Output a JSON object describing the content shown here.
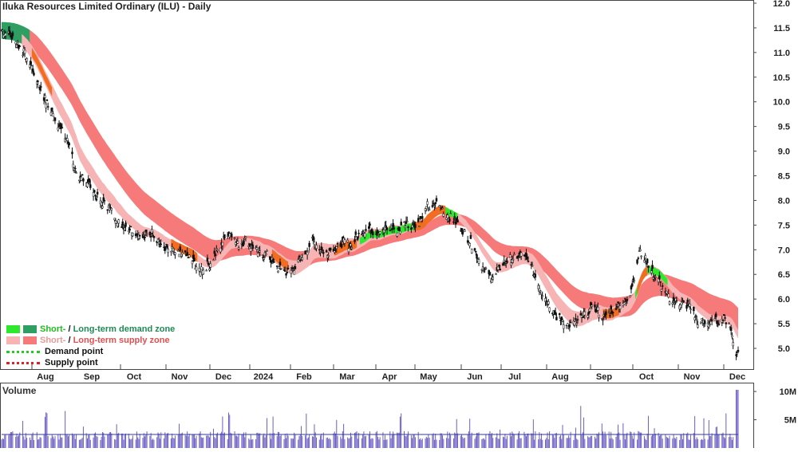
{
  "title": "Iluka Resources Limited Ordinary (ILU) - Daily",
  "volume_title": "Volume",
  "legend": {
    "demand_short": "Short-",
    "demand_sep": " / ",
    "demand_long": "Long-term demand zone",
    "supply_short": "Short-",
    "supply_sep": " / ",
    "supply_long": "Long-term supply zone",
    "demand_point": "Demand point",
    "supply_point": "Supply point"
  },
  "colors": {
    "short_demand": "#2ee82e",
    "long_demand": "#2e9e62",
    "short_supply": "#f7b4b4",
    "long_supply": "#f77a7a",
    "overlap": "#f26d21",
    "demand_point": "#22cc22",
    "supply_point": "#dd2222",
    "volume_bar": "#6b5fc4",
    "volume_avg": "#3a3a9a"
  },
  "chart_data": {
    "type": "candlestick",
    "title": "Iluka Resources Limited Ordinary (ILU) - Daily",
    "x_tick_labels": [
      "Aug",
      "Sep",
      "Oct",
      "Nov",
      "Dec",
      "2024",
      "Feb",
      "Mar",
      "Apr",
      "May",
      "Jun",
      "Jul",
      "Aug",
      "Sep",
      "Oct",
      "Nov",
      "Dec"
    ],
    "y_tick_labels": [
      "12.0",
      "11.5",
      "11.0",
      "10.5",
      "10.0",
      "9.5",
      "9.0",
      "8.5",
      "8.0",
      "7.5",
      "7.0",
      "6.5",
      "6.0",
      "5.5",
      "5.0"
    ],
    "ylim": [
      4.6,
      12.05
    ],
    "price_path": [
      [
        0,
        11.45
      ],
      [
        8,
        11.35
      ],
      [
        15,
        11.2
      ],
      [
        22,
        11.0
      ],
      [
        30,
        10.7
      ],
      [
        38,
        10.3
      ],
      [
        46,
        9.9
      ],
      [
        55,
        9.6
      ],
      [
        62,
        9.3
      ],
      [
        68,
        9.1
      ],
      [
        72,
        8.7
      ],
      [
        76,
        8.3
      ],
      [
        80,
        8.5
      ],
      [
        88,
        8.3
      ],
      [
        96,
        8.0
      ],
      [
        104,
        7.9
      ],
      [
        112,
        7.7
      ],
      [
        120,
        7.5
      ],
      [
        130,
        7.4
      ],
      [
        140,
        7.25
      ],
      [
        150,
        7.35
      ],
      [
        158,
        7.1
      ],
      [
        166,
        7.0
      ],
      [
        176,
        6.9
      ],
      [
        186,
        6.85
      ],
      [
        196,
        6.6
      ],
      [
        206,
        6.7
      ],
      [
        213,
        6.95
      ],
      [
        220,
        7.2
      ],
      [
        226,
        7.35
      ],
      [
        234,
        7.1
      ],
      [
        242,
        7.2
      ],
      [
        250,
        7.0
      ],
      [
        258,
        6.9
      ],
      [
        264,
        6.9
      ],
      [
        270,
        6.7
      ],
      [
        276,
        6.6
      ],
      [
        282,
        6.55
      ],
      [
        286,
        6.55
      ],
      [
        292,
        6.7
      ],
      [
        300,
        6.9
      ],
      [
        308,
        7.2
      ],
      [
        316,
        7.0
      ],
      [
        322,
        6.95
      ],
      [
        330,
        7.05
      ],
      [
        338,
        7.15
      ],
      [
        346,
        7.1
      ],
      [
        354,
        7.3
      ],
      [
        362,
        7.45
      ],
      [
        370,
        7.35
      ],
      [
        378,
        7.4
      ],
      [
        386,
        7.45
      ],
      [
        394,
        7.4
      ],
      [
        400,
        7.55
      ],
      [
        406,
        7.5
      ],
      [
        412,
        7.55
      ],
      [
        418,
        7.6
      ],
      [
        422,
        7.9
      ],
      [
        426,
        7.8
      ],
      [
        430,
        7.95
      ],
      [
        436,
        7.85
      ],
      [
        442,
        7.7
      ],
      [
        448,
        7.6
      ],
      [
        454,
        7.5
      ],
      [
        460,
        7.3
      ],
      [
        466,
        7.1
      ],
      [
        472,
        6.85
      ],
      [
        478,
        6.6
      ],
      [
        484,
        6.45
      ],
      [
        490,
        6.5
      ],
      [
        496,
        6.7
      ],
      [
        502,
        6.8
      ],
      [
        508,
        6.85
      ],
      [
        514,
        6.9
      ],
      [
        520,
        6.8
      ],
      [
        526,
        6.6
      ],
      [
        532,
        6.3
      ],
      [
        538,
        6.05
      ],
      [
        544,
        5.85
      ],
      [
        550,
        5.65
      ],
      [
        556,
        5.55
      ],
      [
        562,
        5.5
      ],
      [
        568,
        5.5
      ],
      [
        574,
        5.6
      ],
      [
        580,
        5.75
      ],
      [
        586,
        5.8
      ],
      [
        592,
        5.75
      ],
      [
        598,
        5.6
      ],
      [
        604,
        5.75
      ],
      [
        610,
        5.9
      ],
      [
        616,
        5.9
      ],
      [
        622,
        6.05
      ],
      [
        628,
        6.55
      ],
      [
        632,
        6.95
      ],
      [
        636,
        6.9
      ],
      [
        640,
        6.75
      ],
      [
        646,
        6.5
      ],
      [
        652,
        6.35
      ],
      [
        658,
        6.1
      ],
      [
        664,
        5.95
      ],
      [
        670,
        5.95
      ],
      [
        676,
        5.9
      ],
      [
        682,
        5.85
      ],
      [
        686,
        5.7
      ],
      [
        690,
        5.55
      ],
      [
        696,
        5.55
      ],
      [
        702,
        5.5
      ],
      [
        708,
        5.55
      ],
      [
        714,
        5.6
      ],
      [
        720,
        5.55
      ],
      [
        724,
        5.3
      ],
      [
        728,
        4.9
      ]
    ],
    "volume": {
      "ylim": [
        0,
        11
      ],
      "y_tick_labels": [
        "10M",
        "5M"
      ],
      "average_level": 2.4
    }
  }
}
